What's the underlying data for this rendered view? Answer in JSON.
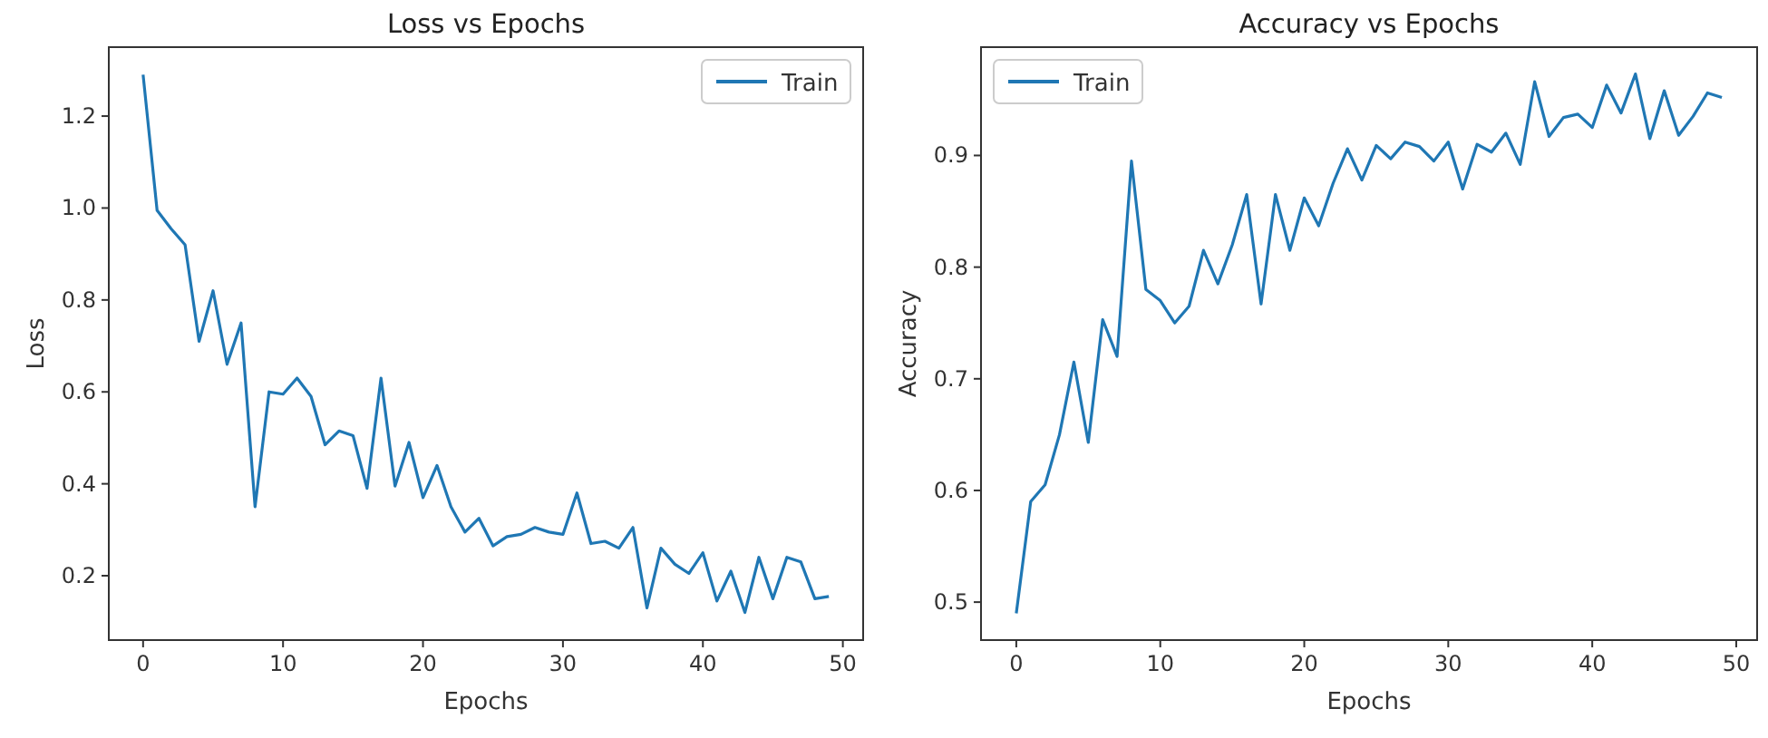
{
  "chart_data": [
    {
      "type": "line",
      "title": "Loss vs Epochs",
      "xlabel": "Epochs",
      "ylabel": "Loss",
      "legend": "top right",
      "grid": false,
      "x": [
        0,
        1,
        2,
        3,
        4,
        5,
        6,
        7,
        8,
        9,
        10,
        11,
        12,
        13,
        14,
        15,
        16,
        17,
        18,
        19,
        20,
        21,
        22,
        23,
        24,
        25,
        26,
        27,
        28,
        29,
        30,
        31,
        32,
        33,
        34,
        35,
        36,
        37,
        38,
        39,
        40,
        41,
        42,
        43,
        44,
        45,
        46,
        47,
        48,
        49
      ],
      "xlim": [
        -2.45,
        51.45
      ],
      "xticks": [
        0,
        10,
        20,
        30,
        40,
        50
      ],
      "ylim": [
        0.06,
        1.35
      ],
      "yticks": [
        {
          "value": 0.2,
          "label": "0.2"
        },
        {
          "value": 0.4,
          "label": "0.4"
        },
        {
          "value": 0.6,
          "label": "0.6"
        },
        {
          "value": 0.8,
          "label": "0.8"
        },
        {
          "value": 1.0,
          "label": "1.0"
        },
        {
          "value": 1.2,
          "label": "1.2"
        }
      ],
      "series": [
        {
          "name": "Train",
          "color": "#1f77b4",
          "values": [
            1.29,
            0.995,
            0.955,
            0.92,
            0.71,
            0.82,
            0.66,
            0.75,
            0.35,
            0.6,
            0.595,
            0.63,
            0.59,
            0.485,
            0.515,
            0.505,
            0.39,
            0.63,
            0.395,
            0.49,
            0.37,
            0.44,
            0.35,
            0.295,
            0.325,
            0.265,
            0.285,
            0.29,
            0.305,
            0.295,
            0.29,
            0.38,
            0.27,
            0.275,
            0.26,
            0.305,
            0.13,
            0.26,
            0.225,
            0.205,
            0.25,
            0.145,
            0.21,
            0.12,
            0.24,
            0.15,
            0.24,
            0.23,
            0.15,
            0.155
          ]
        }
      ]
    },
    {
      "type": "line",
      "title": "Accuracy vs Epochs",
      "xlabel": "Epochs",
      "ylabel": "Accuracy",
      "legend": "top left",
      "grid": false,
      "x": [
        0,
        1,
        2,
        3,
        4,
        5,
        6,
        7,
        8,
        9,
        10,
        11,
        12,
        13,
        14,
        15,
        16,
        17,
        18,
        19,
        20,
        21,
        22,
        23,
        24,
        25,
        26,
        27,
        28,
        29,
        30,
        31,
        32,
        33,
        34,
        35,
        36,
        37,
        38,
        39,
        40,
        41,
        42,
        43,
        44,
        45,
        46,
        47,
        48,
        49
      ],
      "xlim": [
        -2.45,
        51.45
      ],
      "xticks": [
        0,
        10,
        20,
        30,
        40,
        50
      ],
      "ylim": [
        0.466,
        0.997
      ],
      "yticks": [
        0.5,
        0.6,
        0.7,
        0.8,
        0.9
      ],
      "series": [
        {
          "name": "Train",
          "color": "#1f77b4",
          "values": [
            0.49,
            0.59,
            0.605,
            0.65,
            0.715,
            0.643,
            0.753,
            0.72,
            0.895,
            0.78,
            0.77,
            0.75,
            0.765,
            0.815,
            0.785,
            0.82,
            0.865,
            0.767,
            0.865,
            0.815,
            0.862,
            0.837,
            0.875,
            0.906,
            0.878,
            0.909,
            0.897,
            0.912,
            0.908,
            0.895,
            0.912,
            0.87,
            0.91,
            0.903,
            0.92,
            0.892,
            0.966,
            0.917,
            0.934,
            0.937,
            0.925,
            0.963,
            0.938,
            0.973,
            0.915,
            0.958,
            0.918,
            0.935,
            0.956,
            0.952
          ]
        }
      ]
    }
  ]
}
